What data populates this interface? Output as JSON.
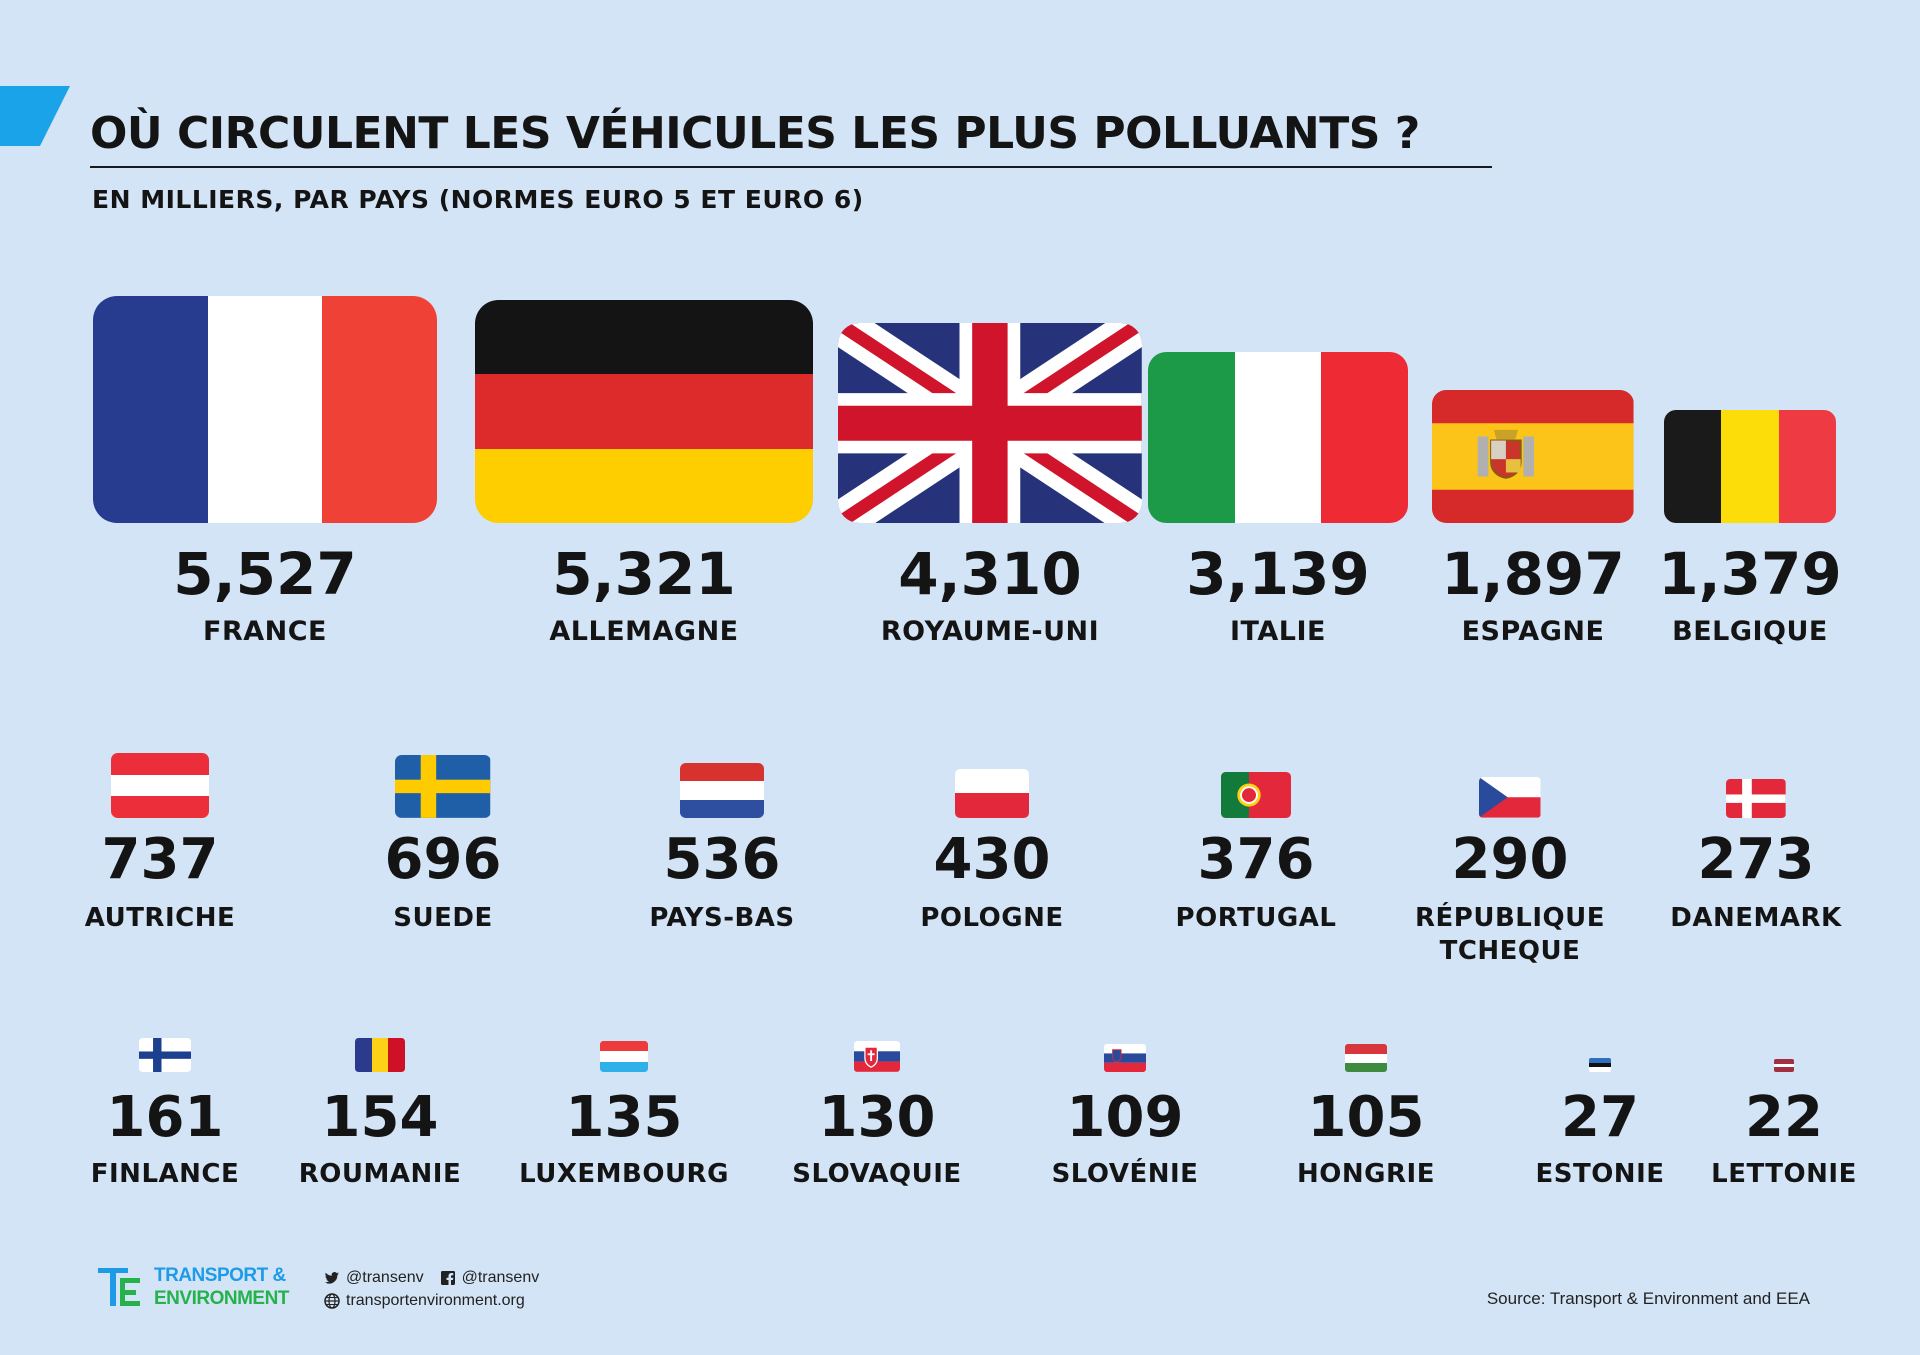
{
  "title": "OÙ CIRCULENT LES VÉHICULES LES PLUS POLLUANTS ?",
  "subtitle": "EN MILLIERS, PAR PAYS (NORMES EURO 5 ET EURO 6)",
  "colors": {
    "background": "#d3e4f6",
    "accent": "#1aa3e8",
    "text": "#141414"
  },
  "chart_data": {
    "type": "table",
    "title": "OÙ CIRCULENT LES VÉHICULES LES PLUS POLLUANTS ?",
    "subtitle": "EN MILLIERS, PAR PAYS (NORMES EURO 5 ET EURO 6)",
    "encoding": "flag area proportional to value",
    "rows": [
      {
        "country": "FRANCE",
        "label": "5,527",
        "value": 5527,
        "flag": "fr"
      },
      {
        "country": "ALLEMAGNE",
        "label": "5,321",
        "value": 5321,
        "flag": "de"
      },
      {
        "country": "ROYAUME-UNI",
        "label": "4,310",
        "value": 4310,
        "flag": "gb"
      },
      {
        "country": "ITALIE",
        "label": "3,139",
        "value": 3139,
        "flag": "it"
      },
      {
        "country": "ESPAGNE",
        "label": "1,897",
        "value": 1897,
        "flag": "es"
      },
      {
        "country": "BELGIQUE",
        "label": "1,379",
        "value": 1379,
        "flag": "be"
      },
      {
        "country": "AUTRICHE",
        "label": "737",
        "value": 737,
        "flag": "at"
      },
      {
        "country": "SUEDE",
        "label": "696",
        "value": 696,
        "flag": "se"
      },
      {
        "country": "PAYS-BAS",
        "label": "536",
        "value": 536,
        "flag": "nl"
      },
      {
        "country": "POLOGNE",
        "label": "430",
        "value": 430,
        "flag": "pl"
      },
      {
        "country": "PORTUGAL",
        "label": "376",
        "value": 376,
        "flag": "pt"
      },
      {
        "country": "RÉPUBLIQUE\nTCHEQUE",
        "label": "290",
        "value": 290,
        "flag": "cz"
      },
      {
        "country": "DANEMARK",
        "label": "273",
        "value": 273,
        "flag": "dk"
      },
      {
        "country": "FINLANCE",
        "label": "161",
        "value": 161,
        "flag": "fi"
      },
      {
        "country": "ROUMANIE",
        "label": "154",
        "value": 154,
        "flag": "ro"
      },
      {
        "country": "LUXEMBOURG",
        "label": "135",
        "value": 135,
        "flag": "lu"
      },
      {
        "country": "SLOVAQUIE",
        "label": "130",
        "value": 130,
        "flag": "sk"
      },
      {
        "country": "SLOVÉNIE",
        "label": "109",
        "value": 109,
        "flag": "si"
      },
      {
        "country": "HONGRIE",
        "label": "105",
        "value": 105,
        "flag": "hu"
      },
      {
        "country": "ESTONIE",
        "label": "27",
        "value": 27,
        "flag": "ee"
      },
      {
        "country": "LETTONIE",
        "label": "22",
        "value": 22,
        "flag": "lv"
      }
    ]
  },
  "footer": {
    "org_line1": "TRANSPORT &",
    "org_line2": "ENVIRONMENT",
    "twitter": "@transenv",
    "facebook": "@transenv",
    "website": "transportenvironment.org",
    "source": "Source: Transport & Environment and EEA"
  }
}
